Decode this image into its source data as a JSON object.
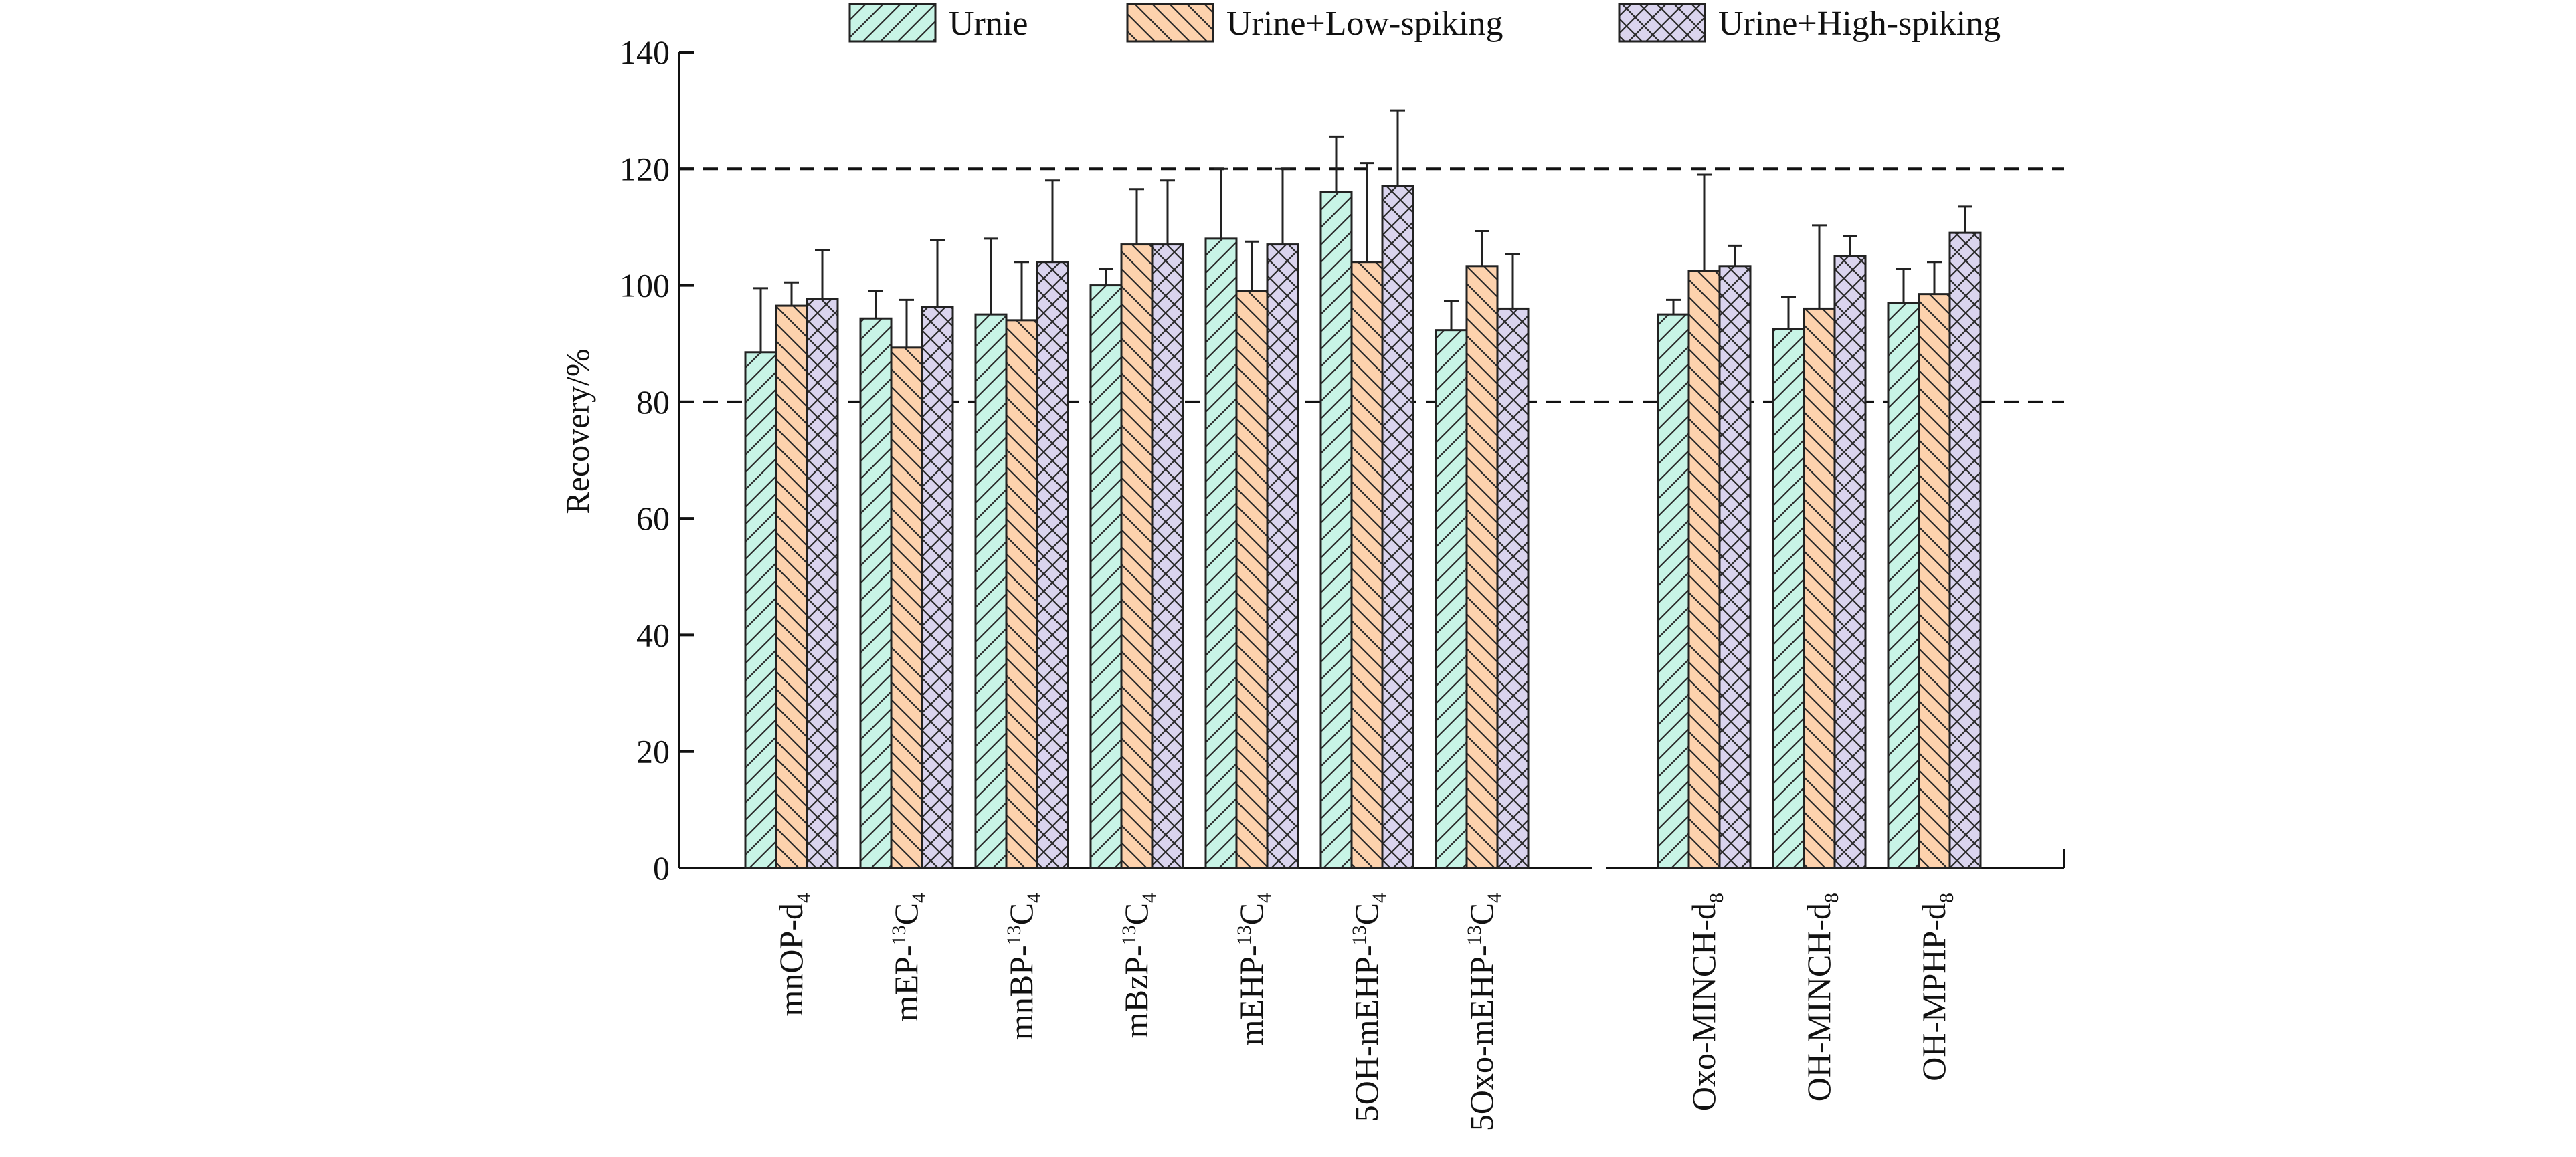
{
  "chart_data": {
    "type": "bar",
    "ylabel": "Recovery/%",
    "ylim": [
      0,
      140
    ],
    "yticks": [
      0,
      20,
      40,
      60,
      80,
      100,
      120,
      140
    ],
    "reference_lines": [
      80,
      120
    ],
    "grid": false,
    "legend_position": "top",
    "categories": [
      {
        "base": "mnOP-d",
        "sup": "",
        "sub": "4"
      },
      {
        "base": "mEP-",
        "sup": "13",
        "sub": "C4"
      },
      {
        "base": "mnBP-",
        "sup": "13",
        "sub": "C4"
      },
      {
        "base": "mBzP-",
        "sup": "13",
        "sub": "C4"
      },
      {
        "base": "mEHP-",
        "sup": "13",
        "sub": "C4"
      },
      {
        "base": "5OH-mEHP-",
        "sup": "13",
        "sub": "C4"
      },
      {
        "base": "5Oxo-mEHP-",
        "sup": "13",
        "sub": "C4"
      },
      {
        "base": "Oxo-MINCH-d",
        "sup": "",
        "sub": "8"
      },
      {
        "base": "OH-MINCH-d",
        "sup": "",
        "sub": "8"
      },
      {
        "base": "OH-MPHP-d",
        "sup": "",
        "sub": "8"
      }
    ],
    "group_gap_after_index": 6,
    "series": [
      {
        "name": "Urnie",
        "color": "#c8f4e6",
        "pattern": "diagonal-up",
        "values": [
          88.5,
          94.3,
          95.0,
          100.0,
          108.0,
          116.0,
          92.3,
          95.0,
          92.5,
          97.0
        ],
        "errors": [
          11.0,
          4.7,
          13.0,
          2.8,
          12.0,
          9.5,
          5.0,
          2.5,
          5.5,
          5.8
        ]
      },
      {
        "name": "Urine+Low-spiking",
        "color": "#fdd2ad",
        "pattern": "diagonal-down",
        "values": [
          96.5,
          89.3,
          94.0,
          107.0,
          99.0,
          104.0,
          103.3,
          102.5,
          96.0,
          98.5
        ],
        "errors": [
          4.0,
          8.2,
          10.0,
          9.5,
          8.5,
          17.0,
          6.0,
          16.5,
          14.3,
          5.5
        ]
      },
      {
        "name": "Urine+High-spiking",
        "color": "#dad4ee",
        "pattern": "crosshatch",
        "values": [
          97.7,
          96.3,
          104.0,
          107.0,
          107.0,
          117.0,
          96.0,
          103.3,
          105.0,
          109.0
        ],
        "errors": [
          8.3,
          11.5,
          14.0,
          11.0,
          13.0,
          13.0,
          9.3,
          3.5,
          3.5,
          4.5
        ]
      }
    ]
  }
}
